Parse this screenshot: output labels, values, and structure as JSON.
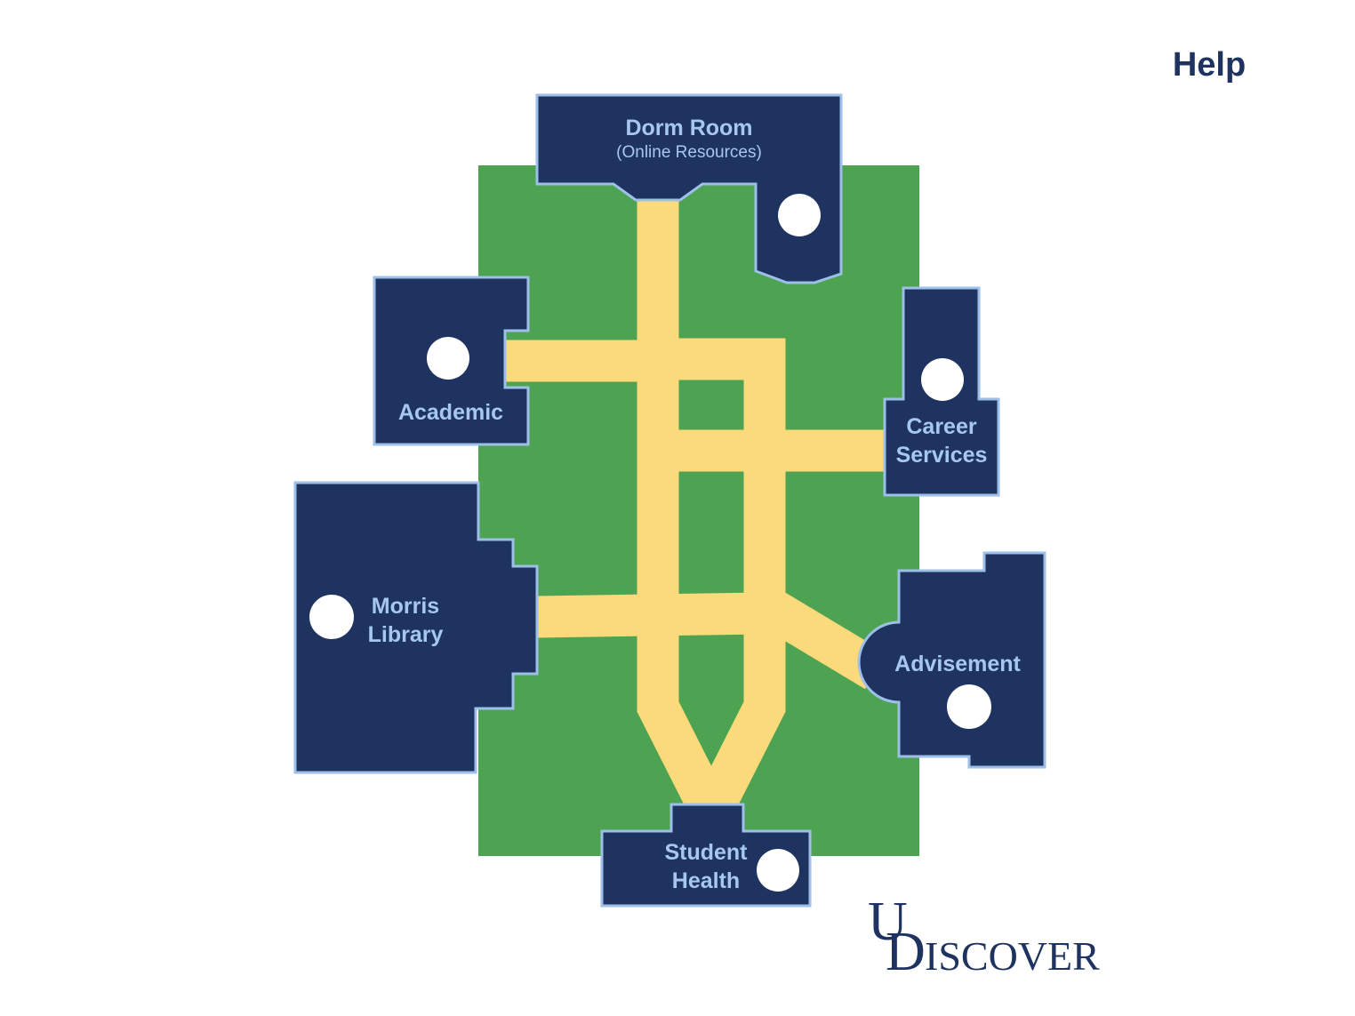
{
  "header": {
    "help_label": "Help"
  },
  "buildings": {
    "dorm": {
      "name": "Dorm Room",
      "subtitle": "(Online Resources)"
    },
    "academic": {
      "name": "Academic"
    },
    "career": {
      "line1": "Career",
      "line2": "Services"
    },
    "library": {
      "line1": "Morris",
      "line2": "Library"
    },
    "advisement": {
      "name": "Advisement"
    },
    "health": {
      "line1": "Student",
      "line2": "Health"
    }
  },
  "logo": {
    "initial_u": "U",
    "initial_d": "D",
    "rest": "ISCOVER"
  },
  "colors": {
    "lawn": "#4da352",
    "walkway": "#fbda7b",
    "building": "#1f3360",
    "building_outline": "#9ebfe8",
    "label": "#a6c8f0",
    "marker": "#ffffff"
  }
}
